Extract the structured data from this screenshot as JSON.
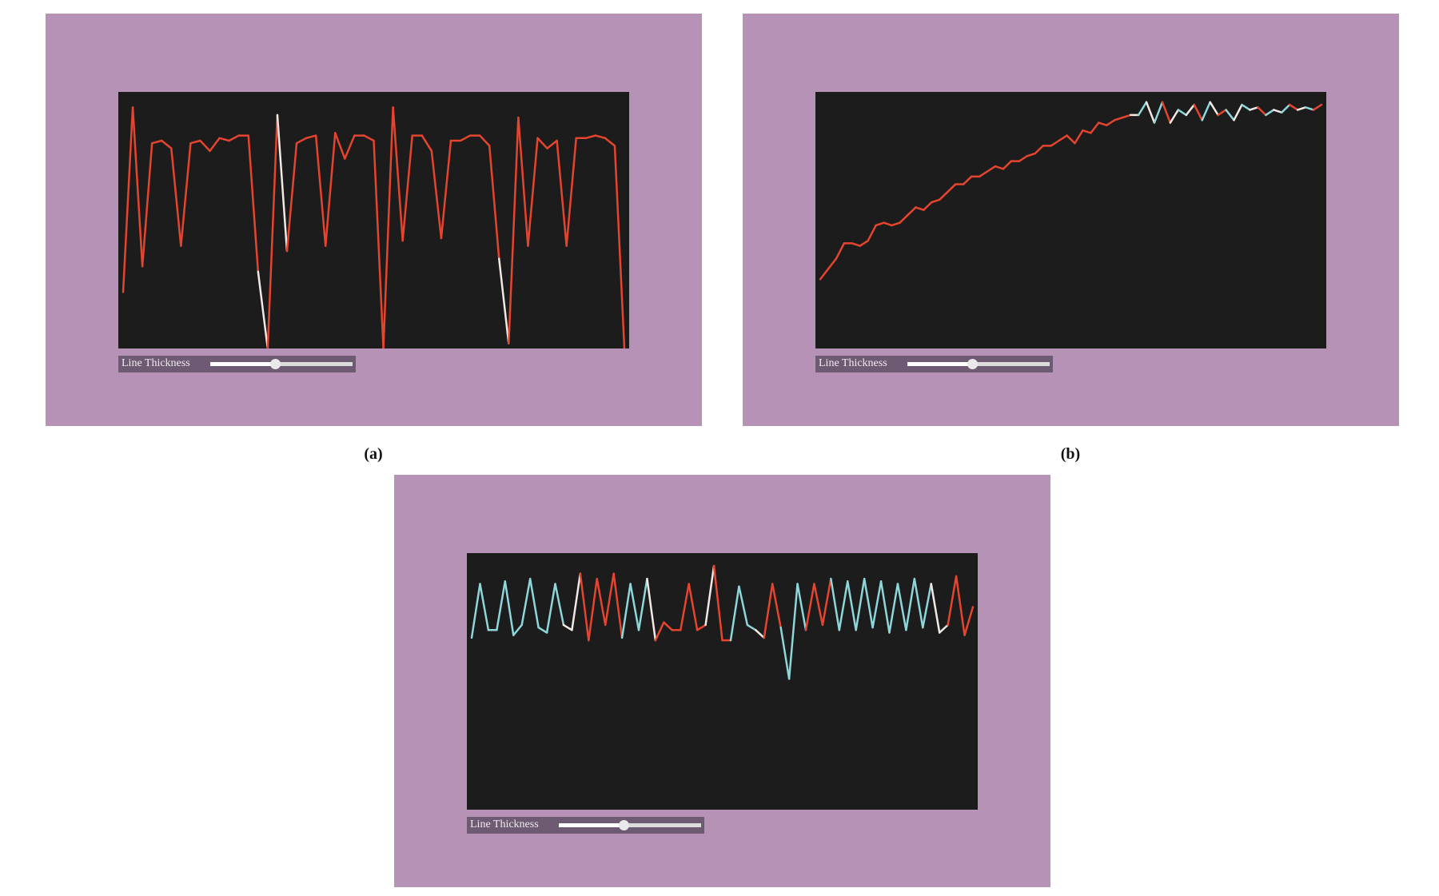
{
  "panels": [
    {
      "label": "(a)",
      "slider_label": "Line Thickness",
      "chart": {
        "type": "line",
        "values": [
          22,
          94,
          32,
          80,
          81,
          78,
          40,
          80,
          81,
          77,
          82,
          81,
          83,
          83,
          30,
          0,
          91,
          38,
          80,
          82,
          83,
          40,
          84,
          74,
          83,
          83,
          81,
          0,
          94,
          42,
          83,
          83,
          77,
          43,
          81,
          81,
          83,
          83,
          79,
          35,
          2,
          90,
          40,
          82,
          78,
          81,
          40,
          82,
          82,
          83,
          82,
          79,
          0
        ],
        "colors": [
          "#e5442e",
          "#e5442e",
          "#e5442e",
          "#e5442e",
          "#e5442e",
          "#e5442e",
          "#e5442e",
          "#e5442e",
          "#e5442e",
          "#e5442e",
          "#e5442e",
          "#e5442e",
          "#e5442e",
          "#e5442e",
          "#e5442e",
          "#f2e8e4",
          "#e5442e",
          "#f2e8e4",
          "#e5442e",
          "#e5442e",
          "#e5442e",
          "#e5442e",
          "#e5442e",
          "#e5442e",
          "#e5442e",
          "#e5442e",
          "#e5442e",
          "#e5442e",
          "#e5442e",
          "#e5442e",
          "#e5442e",
          "#e5442e",
          "#e5442e",
          "#e5442e",
          "#e5442e",
          "#e5442e",
          "#e5442e",
          "#e5442e",
          "#e5442e",
          "#e5442e",
          "#f2e8e4",
          "#e5442e",
          "#e5442e",
          "#e5442e",
          "#e5442e",
          "#e5442e",
          "#e5442e",
          "#e5442e",
          "#e5442e",
          "#e5442e",
          "#e5442e",
          "#e5442e",
          "#e5442e"
        ]
      }
    },
    {
      "label": "(b)",
      "slider_label": "Line Thickness",
      "chart": {
        "type": "line",
        "values": [
          27,
          31,
          35,
          41,
          41,
          40,
          42,
          48,
          49,
          48,
          49,
          52,
          55,
          54,
          57,
          58,
          61,
          64,
          64,
          67,
          67,
          69,
          71,
          70,
          73,
          73,
          75,
          76,
          79,
          79,
          81,
          83,
          80,
          85,
          84,
          88,
          87,
          89,
          90,
          91,
          91,
          96,
          88,
          96,
          88,
          93,
          91,
          95,
          89,
          96,
          91,
          93,
          89,
          95,
          93,
          94,
          91,
          93,
          92,
          95,
          93,
          94,
          93,
          95
        ],
        "colors": [
          "#e5442e",
          "#e5442e",
          "#e5442e",
          "#e5442e",
          "#e5442e",
          "#e5442e",
          "#e5442e",
          "#e5442e",
          "#e5442e",
          "#e5442e",
          "#e5442e",
          "#e5442e",
          "#e5442e",
          "#e5442e",
          "#e5442e",
          "#e5442e",
          "#e5442e",
          "#e5442e",
          "#e5442e",
          "#e5442e",
          "#e5442e",
          "#e5442e",
          "#e5442e",
          "#e5442e",
          "#e5442e",
          "#e5442e",
          "#e5442e",
          "#e5442e",
          "#e5442e",
          "#e5442e",
          "#e5442e",
          "#e5442e",
          "#e5442e",
          "#e5442e",
          "#e5442e",
          "#e5442e",
          "#e5442e",
          "#e5442e",
          "#e5442e",
          "#e5442e",
          "#f2e8e4",
          "#8dd6da",
          "#f2e8e4",
          "#8dd6da",
          "#e5442e",
          "#f2e8e4",
          "#8dd6da",
          "#f2e8e4",
          "#e5442e",
          "#8dd6da",
          "#f2e8e4",
          "#e5442e",
          "#8dd6da",
          "#f2e8e4",
          "#8dd6da",
          "#f2e8e4",
          "#e5442e",
          "#8dd6da",
          "#f2e8e4",
          "#8dd6da",
          "#e5442e",
          "#f2e8e4",
          "#8dd6da",
          "#e5442e"
        ]
      }
    },
    {
      "slider_label": "Line Thickness",
      "chart": {
        "type": "line",
        "values": [
          67,
          88,
          70,
          70,
          89,
          68,
          72,
          90,
          71,
          69,
          88,
          72,
          70,
          92,
          66,
          90,
          72,
          92,
          67,
          88,
          70,
          90,
          66,
          73,
          70,
          70,
          88,
          70,
          72,
          95,
          66,
          66,
          87,
          72,
          70,
          67,
          88,
          71,
          51,
          88,
          70,
          88,
          72,
          90,
          70,
          89,
          70,
          90,
          71,
          89,
          69,
          88,
          70,
          90,
          71,
          88,
          69,
          72,
          91,
          68,
          79
        ],
        "colors": [
          "#8dd6da",
          "#8dd6da",
          "#8dd6da",
          "#8dd6da",
          "#8dd6da",
          "#8dd6da",
          "#8dd6da",
          "#8dd6da",
          "#8dd6da",
          "#8dd6da",
          "#8dd6da",
          "#8dd6da",
          "#f2e8e4",
          "#f2e8e4",
          "#e5442e",
          "#e5442e",
          "#e5442e",
          "#e5442e",
          "#e5442e",
          "#8dd6da",
          "#8dd6da",
          "#8dd6da",
          "#f2e8e4",
          "#e5442e",
          "#e5442e",
          "#e5442e",
          "#e5442e",
          "#e5442e",
          "#e5442e",
          "#f2e8e4",
          "#e5442e",
          "#e5442e",
          "#8dd6da",
          "#8dd6da",
          "#8dd6da",
          "#f2e8e4",
          "#e5442e",
          "#e5442e",
          "#8dd6da",
          "#8dd6da",
          "#8dd6da",
          "#e5442e",
          "#e5442e",
          "#e5442e",
          "#8dd6da",
          "#8dd6da",
          "#8dd6da",
          "#8dd6da",
          "#8dd6da",
          "#8dd6da",
          "#8dd6da",
          "#8dd6da",
          "#8dd6da",
          "#8dd6da",
          "#8dd6da",
          "#8dd6da",
          "#f2e8e4",
          "#f2e8e4",
          "#e5442e",
          "#e5442e",
          "#e5442e"
        ]
      }
    }
  ]
}
